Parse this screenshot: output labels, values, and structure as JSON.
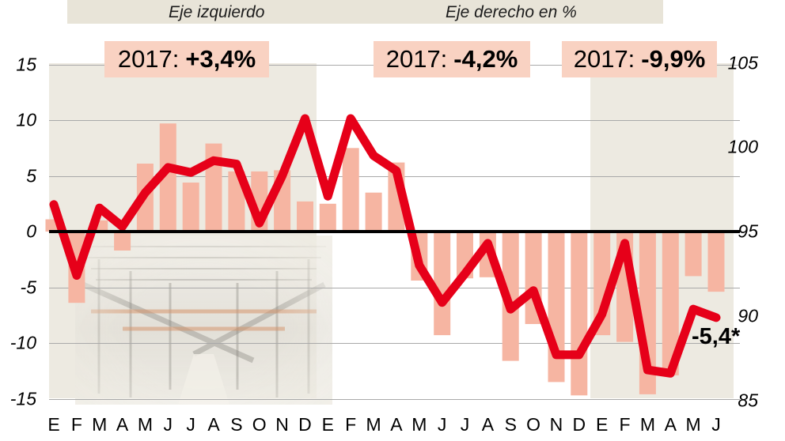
{
  "legend": {
    "left": "Eje izquierdo",
    "right": "Eje derecho en %"
  },
  "annotation_boxes": [
    {
      "prefix": "2017:",
      "value": "+3,4%"
    },
    {
      "prefix": "2017:",
      "value": "-4,2%"
    },
    {
      "prefix": "2017:",
      "value": "-9,9%"
    }
  ],
  "last_value_label": "-5,4*",
  "chart_data": {
    "type": "bar+line",
    "title": "",
    "categories": [
      "E",
      "F",
      "M",
      "A",
      "M",
      "J",
      "J",
      "A",
      "S",
      "O",
      "N",
      "D",
      "E",
      "F",
      "M",
      "A",
      "M",
      "J",
      "J",
      "A",
      "S",
      "O",
      "N",
      "D",
      "E",
      "F",
      "M",
      "A",
      "M",
      "J"
    ],
    "series": [
      {
        "name": "Eje izquierdo",
        "type": "bar",
        "axis": "left",
        "values": [
          1.1,
          -6.4,
          1.0,
          -1.7,
          6.1,
          9.7,
          4.4,
          7.9,
          5.4,
          5.4,
          5.5,
          2.7,
          2.5,
          7.5,
          3.5,
          6.2,
          -4.4,
          -9.3,
          -4.2,
          -4.1,
          -11.6,
          -8.3,
          -13.5,
          -14.7,
          -9.3,
          -9.9,
          -14.6,
          -12.9,
          -4.0,
          -5.4
        ]
      },
      {
        "name": "Eje derecho en %",
        "type": "line",
        "axis": "right",
        "values": [
          96.6,
          92.4,
          96.4,
          95.3,
          97.3,
          98.8,
          98.5,
          99.2,
          99.0,
          95.5,
          98.3,
          101.7,
          97.1,
          101.7,
          99.5,
          98.6,
          93.0,
          90.8,
          92.5,
          94.3,
          90.4,
          91.5,
          87.7,
          87.7,
          90.1,
          94.3,
          86.8,
          86.6,
          90.4,
          89.9
        ]
      }
    ],
    "left_axis": {
      "ticks": [
        15,
        10,
        5,
        0,
        -5,
        -10,
        -15
      ],
      "range": [
        -15,
        15
      ]
    },
    "right_axis": {
      "ticks": [
        105,
        100,
        95,
        90,
        85
      ],
      "range": [
        85,
        105
      ]
    },
    "highlight_month_ranges": [
      [
        0,
        11
      ],
      [
        24,
        29
      ]
    ],
    "grid": "horizontal lines at left-axis tick positions",
    "legend_position": "top"
  },
  "colors": {
    "bar": "#f6b5a2",
    "line": "#e60019",
    "annotation_bg": "#f9d2c2",
    "panel": "#edeae1",
    "top_strip": "#e8e4d8",
    "grid": "#a9a9a9",
    "zero_line": "#000000"
  }
}
